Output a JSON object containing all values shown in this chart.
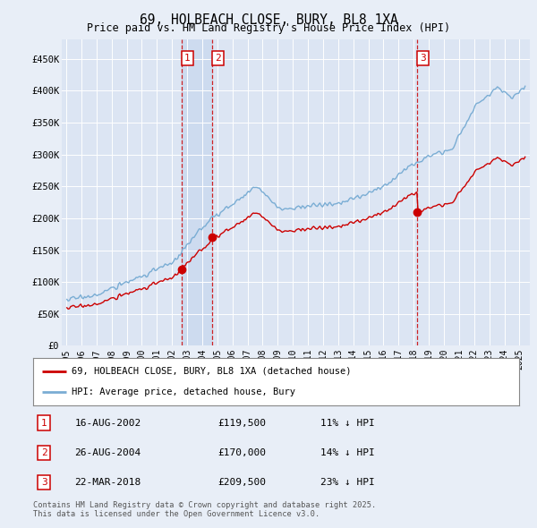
{
  "title": "69, HOLBEACH CLOSE, BURY, BL8 1XA",
  "subtitle": "Price paid vs. HM Land Registry's House Price Index (HPI)",
  "background_color": "#e8eef7",
  "plot_bg_color": "#dce5f3",
  "ylim": [
    0,
    480000
  ],
  "yticks": [
    0,
    50000,
    100000,
    150000,
    200000,
    250000,
    300000,
    350000,
    400000,
    450000
  ],
  "ytick_labels": [
    "£0",
    "£50K",
    "£100K",
    "£150K",
    "£200K",
    "£250K",
    "£300K",
    "£350K",
    "£400K",
    "£450K"
  ],
  "xlim_start": 1994.7,
  "xlim_end": 2025.7,
  "xticks": [
    1995,
    1996,
    1997,
    1998,
    1999,
    2000,
    2001,
    2002,
    2003,
    2004,
    2005,
    2006,
    2007,
    2008,
    2009,
    2010,
    2011,
    2012,
    2013,
    2014,
    2015,
    2016,
    2017,
    2018,
    2019,
    2020,
    2021,
    2022,
    2023,
    2024,
    2025
  ],
  "transactions": [
    {
      "date_num": 2002.62,
      "price": 119500,
      "label": "1"
    },
    {
      "date_num": 2004.65,
      "price": 170000,
      "label": "2"
    },
    {
      "date_num": 2018.22,
      "price": 209500,
      "label": "3"
    }
  ],
  "transaction_table": [
    {
      "num": "1",
      "date": "16-AUG-2002",
      "price": "£119,500",
      "note": "11% ↓ HPI"
    },
    {
      "num": "2",
      "date": "26-AUG-2004",
      "price": "£170,000",
      "note": "14% ↓ HPI"
    },
    {
      "num": "3",
      "date": "22-MAR-2018",
      "price": "£209,500",
      "note": "23% ↓ HPI"
    }
  ],
  "legend_entries": [
    {
      "label": "69, HOLBEACH CLOSE, BURY, BL8 1XA (detached house)",
      "color": "#cc0000"
    },
    {
      "label": "HPI: Average price, detached house, Bury",
      "color": "#7aadd4"
    }
  ],
  "footer": "Contains HM Land Registry data © Crown copyright and database right 2025.\nThis data is licensed under the Open Government Licence v3.0.",
  "hpi_color": "#7aadd4",
  "price_color": "#cc0000",
  "vline_color": "#cc0000",
  "highlight_color": "#c8d8ee"
}
